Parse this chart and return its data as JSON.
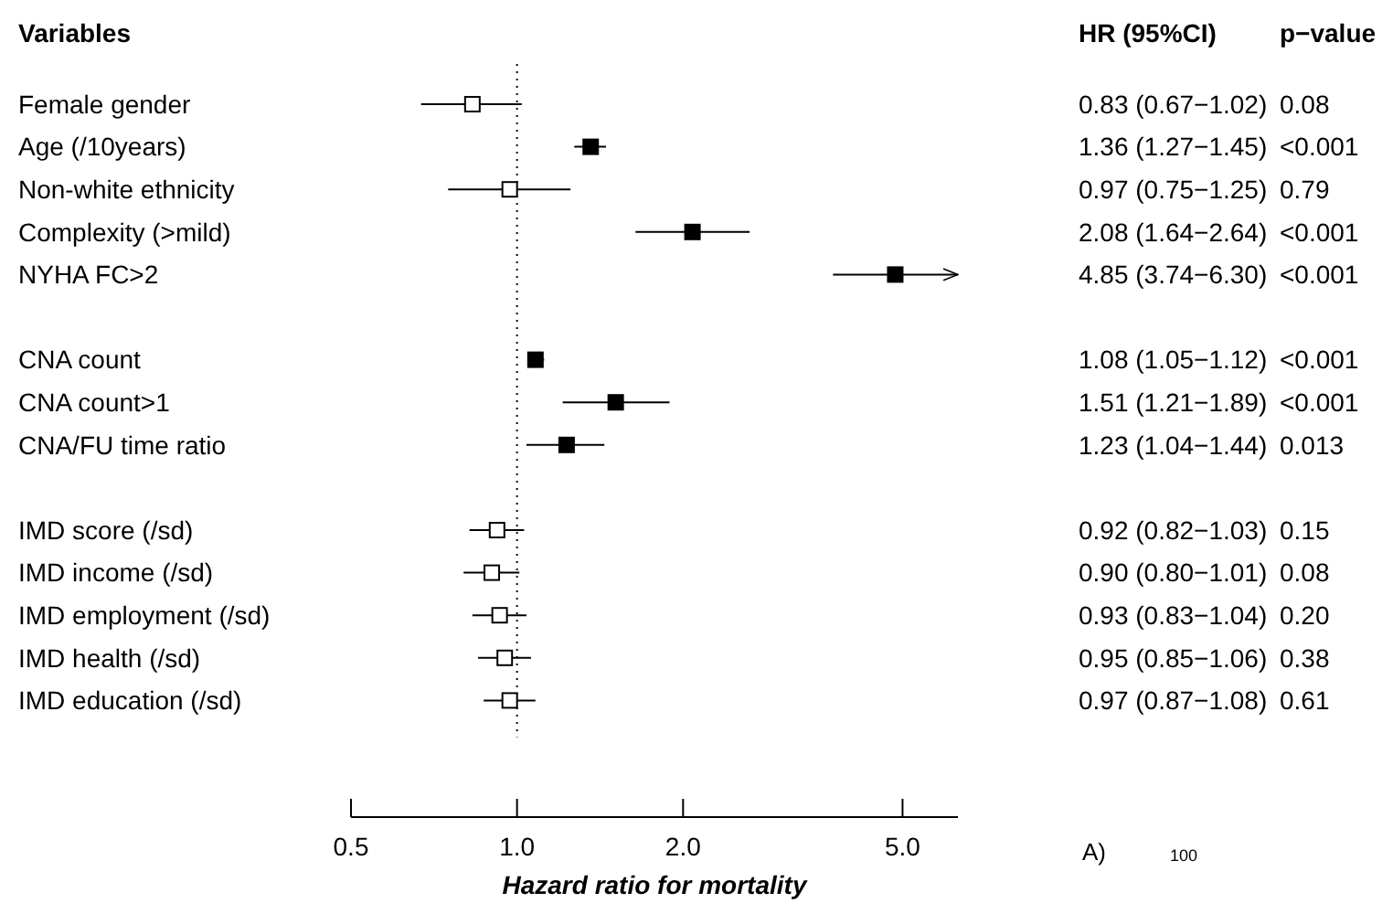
{
  "chart_data": {
    "type": "scatter",
    "orientation": "horizontal",
    "ylabel": "Variables",
    "xlabel": "Hazard ratio for mortality",
    "categories": [
      "Female gender",
      "Age (/10years)",
      "Non-white ethnicity",
      "Complexity (>mild)",
      "NYHA FC>2",
      null,
      "CNA count",
      "CNA count>1",
      "CNA/FU time ratio",
      null,
      "IMD score (/sd)",
      "IMD income (/sd)",
      "IMD employment (/sd)",
      "IMD health (/sd)",
      "IMD education (/sd)"
    ],
    "series": [
      {
        "color": "#ffffff",
        "values": [
          0.83,
          null,
          0.97,
          null,
          null,
          null,
          null,
          null,
          null,
          null,
          0.92,
          0.9,
          0.93,
          0.95,
          0.97
        ],
        "errors": [
          [
            0.67,
            1.02
          ],
          null,
          [
            0.75,
            1.25
          ],
          null,
          null,
          null,
          null,
          null,
          null,
          null,
          [
            0.82,
            1.03
          ],
          [
            0.8,
            1.01
          ],
          [
            0.83,
            1.04
          ],
          [
            0.85,
            1.06
          ],
          [
            0.87,
            1.08
          ]
        ]
      },
      {
        "color": "#000000",
        "values": [
          null,
          1.36,
          null,
          2.08,
          4.85,
          null,
          1.08,
          1.51,
          1.23,
          null,
          null,
          null,
          null,
          null,
          null
        ],
        "errors": [
          null,
          [
            1.27,
            1.45
          ],
          null,
          [
            1.64,
            2.64
          ],
          [
            3.74,
            6.3
          ],
          null,
          [
            1.05,
            1.12
          ],
          [
            1.21,
            1.89
          ],
          [
            1.04,
            1.44
          ],
          null,
          null,
          null,
          null,
          null,
          null
        ]
      }
    ],
    "xlim": [
      0.5,
      6.3
    ],
    "xticks": [
      0.5,
      {
        "value": 1,
        "label": "1.0"
      },
      {
        "value": 2,
        "label": "2.0"
      },
      {
        "value": 5,
        "label": "5.0"
      }
    ],
    "log": "x",
    "marker": "square",
    "grid": false,
    "ref_lines": [
      {
        "axis": "x",
        "value": 1,
        "line_style": "dotted",
        "color": "#000000"
      }
    ],
    "annotations": [
      "HR (95%CI)",
      "p−value",
      "0.83 (0.67−1.02)",
      "1.36 (1.27−1.45)",
      "0.97 (0.75−1.25)",
      "2.08 (1.64−2.64)",
      "4.85 (3.74−6.30)",
      "1.08 (1.05−1.12)",
      "1.51 (1.21−1.89)",
      "1.23 (1.04−1.44)",
      "0.92 (0.82−1.03)",
      "0.90 (0.80−1.01)",
      "0.93 (0.83−1.04)",
      "0.95 (0.85−1.06)",
      "0.97 (0.87−1.08)",
      "0.08",
      "<0.001",
      "0.79",
      "<0.001",
      "<0.001",
      "<0.001",
      "<0.001",
      "0.013",
      "0.15",
      "0.08",
      "0.20",
      "0.38",
      "0.61",
      "A)",
      "100"
    ]
  }
}
